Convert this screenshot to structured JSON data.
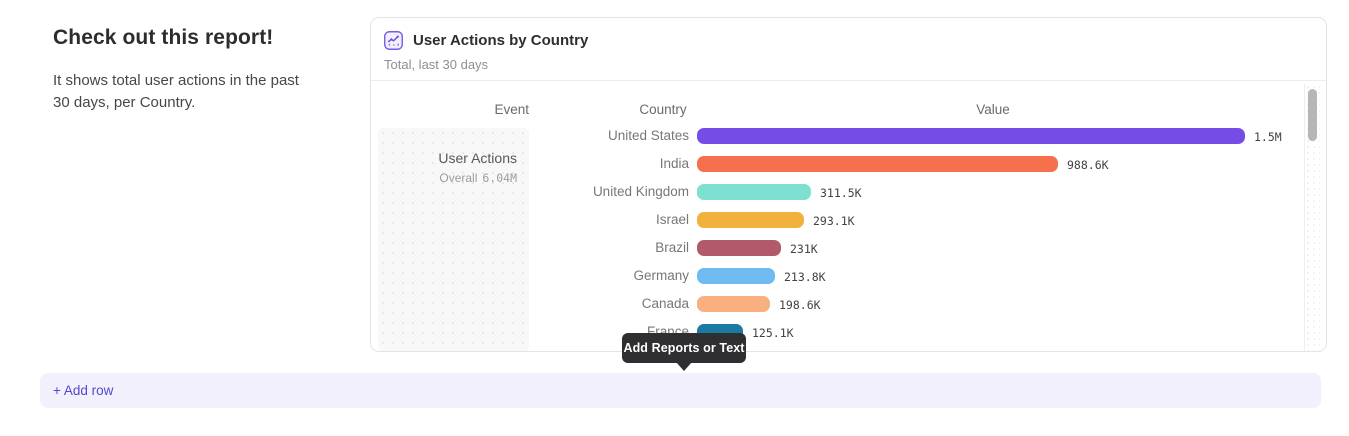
{
  "page": {
    "heading": "Check out this report!",
    "description": "It shows total user actions in the past 30 days, per Country."
  },
  "report_card": {
    "title": "User Actions by Country",
    "subtitle": "Total, last 30 days",
    "icon": "line-chart-icon",
    "accent_color": "#7a57ea",
    "table": {
      "columns": [
        "Event",
        "Country",
        "Value"
      ],
      "event_cell": {
        "name": "User Actions",
        "aggregation": "Overall",
        "total": "6.04M"
      }
    }
  },
  "chart_data": {
    "type": "bar",
    "orientation": "horizontal",
    "title": "User Actions by Country",
    "subtitle": "Total, last 30 days",
    "categories": [
      "United States",
      "India",
      "United Kingdom",
      "Israel",
      "Brazil",
      "Germany",
      "Canada",
      "France"
    ],
    "values": [
      1500000,
      988600,
      311500,
      293100,
      231000,
      213800,
      198600,
      125100
    ],
    "value_labels": [
      "1.5M",
      "988.6K",
      "311.5K",
      "293.1K",
      "231K",
      "213.8K",
      "198.6K",
      "125.1K"
    ],
    "bar_colors": [
      "#754ce5",
      "#f7704e",
      "#7de0d2",
      "#f1b23d",
      "#b25a6c",
      "#70baf2",
      "#f9b07e",
      "#1a7aa2"
    ],
    "xlim": [
      0,
      1500000
    ],
    "grid": false,
    "legend": false
  },
  "tooltip": {
    "label": "Add Reports or Text",
    "background": "#2f2f31",
    "text_color": "#ffffff"
  },
  "add_row": {
    "label": "+ Add row",
    "background": "#f2f0fc",
    "text_color": "#5348cf"
  }
}
